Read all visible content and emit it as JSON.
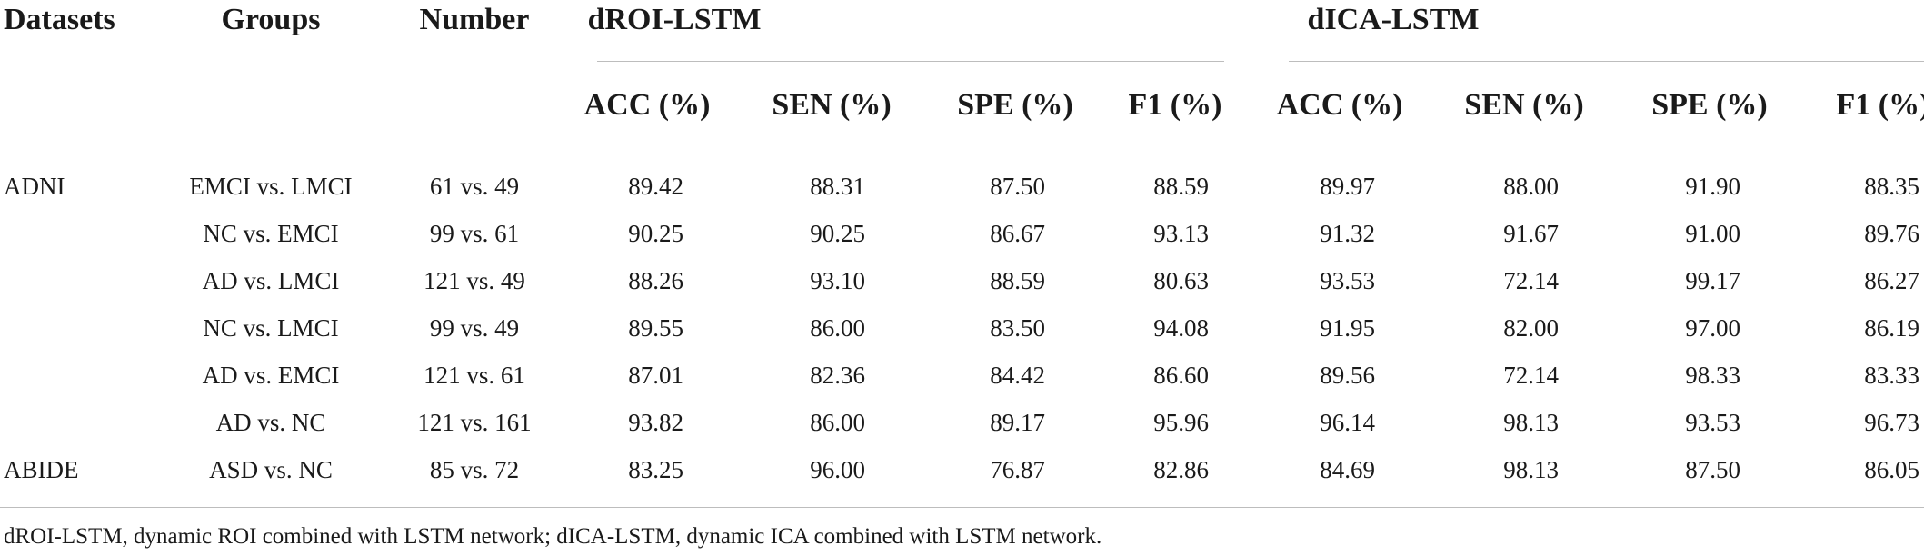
{
  "header": {
    "datasets": "Datasets",
    "groups": "Groups",
    "number": "Number",
    "model1": "dROI-LSTM",
    "model2": "dICA-LSTM",
    "metrics": [
      "ACC (%)",
      "SEN (%)",
      "SPE (%)",
      "F1 (%)"
    ]
  },
  "rows": [
    {
      "dataset": "ADNI",
      "group": "EMCI vs. LMCI",
      "number": "61 vs. 49",
      "droi": [
        "89.42",
        "88.31",
        "87.50",
        "88.59"
      ],
      "dica": [
        "89.97",
        "88.00",
        "91.90",
        "88.35"
      ]
    },
    {
      "dataset": "",
      "group": "NC vs. EMCI",
      "number": "99 vs. 61",
      "droi": [
        "90.25",
        "90.25",
        "86.67",
        "93.13"
      ],
      "dica": [
        "91.32",
        "91.67",
        "91.00",
        "89.76"
      ]
    },
    {
      "dataset": "",
      "group": "AD vs. LMCI",
      "number": "121 vs. 49",
      "droi": [
        "88.26",
        "93.10",
        "88.59",
        "80.63"
      ],
      "dica": [
        "93.53",
        "72.14",
        "99.17",
        "86.27"
      ]
    },
    {
      "dataset": "",
      "group": "NC vs. LMCI",
      "number": "99 vs. 49",
      "droi": [
        "89.55",
        "86.00",
        "83.50",
        "94.08"
      ],
      "dica": [
        "91.95",
        "82.00",
        "97.00",
        "86.19"
      ]
    },
    {
      "dataset": "",
      "group": "AD vs. EMCI",
      "number": "121 vs. 61",
      "droi": [
        "87.01",
        "82.36",
        "84.42",
        "86.60"
      ],
      "dica": [
        "89.56",
        "72.14",
        "98.33",
        "83.33"
      ]
    },
    {
      "dataset": "",
      "group": "AD vs. NC",
      "number": "121 vs. 161",
      "droi": [
        "93.82",
        "86.00",
        "89.17",
        "95.96"
      ],
      "dica": [
        "96.14",
        "98.13",
        "93.53",
        "96.73"
      ]
    },
    {
      "dataset": "ABIDE",
      "group": "ASD vs. NC",
      "number": "85 vs. 72",
      "droi": [
        "83.25",
        "96.00",
        "76.87",
        "82.86"
      ],
      "dica": [
        "84.69",
        "98.13",
        "87.50",
        "86.05"
      ]
    }
  ],
  "footnote": "dROI-LSTM, dynamic ROI combined with LSTM network; dICA-LSTM, dynamic ICA combined with LSTM network."
}
